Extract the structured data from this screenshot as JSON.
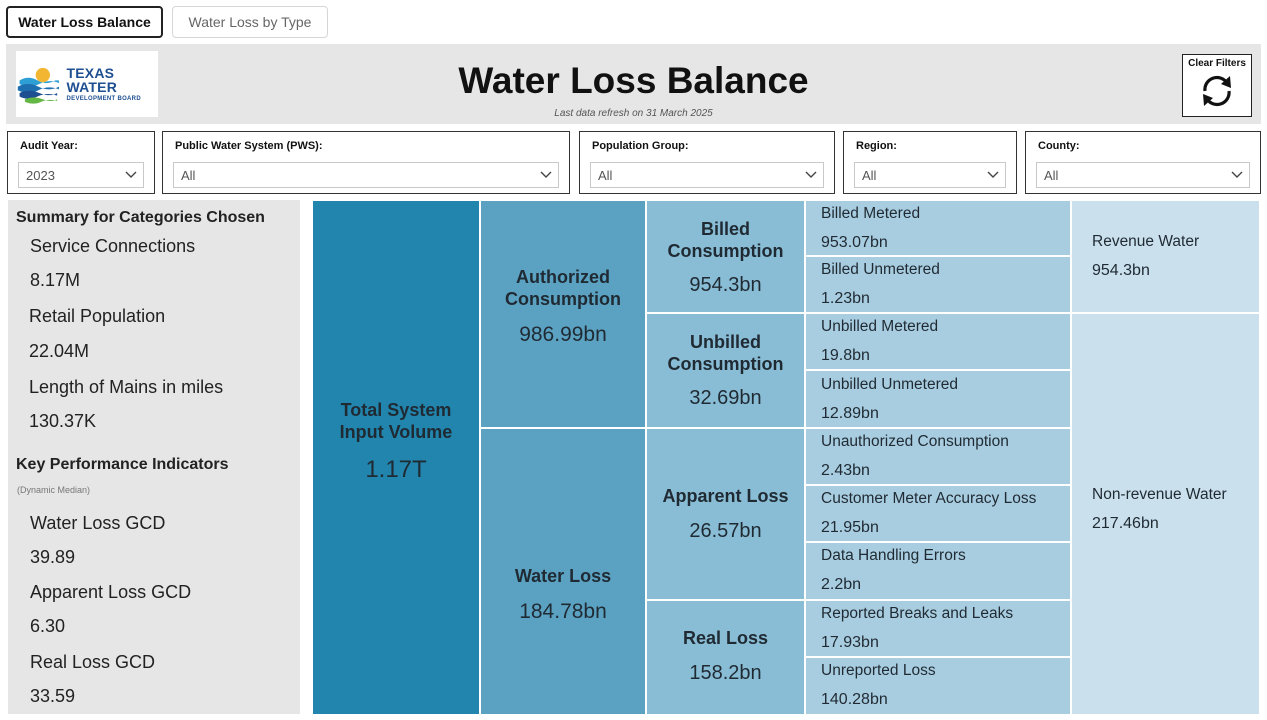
{
  "tabs": [
    {
      "label": "Water Loss Balance",
      "active": true
    },
    {
      "label": "Water Loss by Type",
      "active": false
    }
  ],
  "header": {
    "logo": {
      "line1": "TEXAS WATER",
      "line2": "DEVELOPMENT BOARD"
    },
    "title": "Water Loss Balance",
    "refresh_note": "Last data refresh on 31 March 2025",
    "clear_filters_label": "Clear Filters"
  },
  "filters": [
    {
      "label": "Audit Year:",
      "value": "2023"
    },
    {
      "label": "Public Water System (PWS):",
      "value": "All"
    },
    {
      "label": "Population Group:",
      "value": "All"
    },
    {
      "label": "Region:",
      "value": "All"
    },
    {
      "label": "County:",
      "value": "All"
    }
  ],
  "summary": {
    "heading": "Summary for Categories Chosen",
    "items": [
      {
        "label": "Service Connections",
        "value": "8.17M"
      },
      {
        "label": "Retail Population",
        "value": "22.04M"
      },
      {
        "label": "Length of Mains in miles",
        "value": "130.37K"
      }
    ],
    "kpi_heading": "Key Performance Indicators",
    "kpi_sub": "(Dynamic Median)",
    "kpis": [
      {
        "label": "Water Loss GCD",
        "value": "39.89"
      },
      {
        "label": "Apparent Loss GCD",
        "value": "6.30"
      },
      {
        "label": "Real Loss GCD",
        "value": "33.59"
      }
    ]
  },
  "balance": {
    "total": {
      "line1": "Total System",
      "line2": "Input Volume",
      "value": "1.17T"
    },
    "authorized": {
      "line1": "Authorized",
      "line2": "Consumption",
      "value": "986.99bn"
    },
    "water_loss": {
      "label": "Water Loss",
      "value": "184.78bn"
    },
    "billed": {
      "line1": "Billed",
      "line2": "Consumption",
      "value": "954.3bn"
    },
    "unbilled": {
      "line1": "Unbilled",
      "line2": "Consumption",
      "value": "32.69bn"
    },
    "apparent": {
      "label": "Apparent Loss",
      "value": "26.57bn"
    },
    "real": {
      "label": "Real Loss",
      "value": "158.2bn"
    },
    "details": [
      {
        "label": "Billed Metered",
        "value": "953.07bn"
      },
      {
        "label": "Billed Unmetered",
        "value": "1.23bn"
      },
      {
        "label": "Unbilled Metered",
        "value": "19.8bn"
      },
      {
        "label": "Unbilled Unmetered",
        "value": "12.89bn"
      },
      {
        "label": "Unauthorized Consumption",
        "value": "2.43bn"
      },
      {
        "label": "Customer Meter Accuracy Loss",
        "value": "21.95bn"
      },
      {
        "label": "Data Handling Errors",
        "value": "2.2bn"
      },
      {
        "label": "Reported Breaks and Leaks",
        "value": "17.93bn"
      },
      {
        "label": "Unreported Loss",
        "value": "140.28bn"
      }
    ],
    "revenue": {
      "label": "Revenue Water",
      "value": "954.3bn"
    },
    "nonrevenue": {
      "label": "Non-revenue Water",
      "value": "217.46bn"
    }
  },
  "colors": {
    "col1": "#2185ae",
    "col2": "#5ba2c2",
    "col3": "#89bdd5",
    "col4": "#a9cde0",
    "col5": "#cae0ec"
  }
}
